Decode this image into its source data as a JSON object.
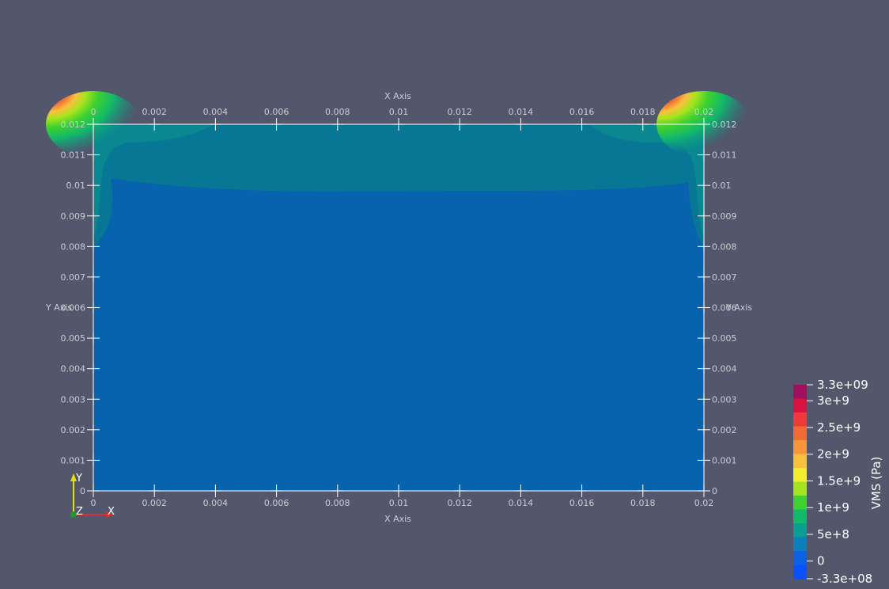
{
  "chart_data": {
    "type": "heatmap",
    "background": "#52576b",
    "field": {
      "title": "VMS (Pa)",
      "range": [
        -330000000,
        3300000000
      ],
      "background_value_color": "#0863ae",
      "upper_band_color": "#087795",
      "edge_band_color": "#0b8f8f"
    },
    "axes": {
      "x": {
        "title": "X Axis",
        "range": [
          0,
          0.02
        ],
        "ticks": [
          "0",
          "0.002",
          "0.004",
          "0.006",
          "0.008",
          "0.01",
          "0.012",
          "0.014",
          "0.016",
          "0.018",
          "0.02"
        ]
      },
      "y": {
        "title": "Y Axis",
        "range": [
          0,
          0.012
        ],
        "ticks": [
          "0",
          "0.001",
          "0.002",
          "0.003",
          "0.004",
          "0.005",
          "0.006",
          "0.007",
          "0.008",
          "0.009",
          "0.01",
          "0.011",
          "0.012"
        ]
      }
    },
    "colorbar": {
      "bands": [
        "#a1105f",
        "#d8123f",
        "#f03a3a",
        "#f26a35",
        "#f7963a",
        "#f8c13c",
        "#f5ec2c",
        "#a6e41f",
        "#3ed12f",
        "#12b86b",
        "#0a9e92",
        "#0a7fbc",
        "#0a63e4",
        "#0852ff"
      ],
      "labels": [
        {
          "text": "3.3e+09",
          "value": 3300000000
        },
        {
          "text": "3e+9",
          "value": 3000000000
        },
        {
          "text": "2.5e+9",
          "value": 2500000000
        },
        {
          "text": "2e+9",
          "value": 2000000000
        },
        {
          "text": "1.5e+9",
          "value": 1500000000
        },
        {
          "text": "1e+9",
          "value": 1000000000
        },
        {
          "text": "5e+8",
          "value": 500000000
        },
        {
          "text": "0",
          "value": 0
        },
        {
          "text": "-3.3e+08",
          "value": -330000000
        }
      ]
    },
    "orientation_axes": {
      "x": "X",
      "y": "Y",
      "z": "Z"
    },
    "grid": false
  }
}
